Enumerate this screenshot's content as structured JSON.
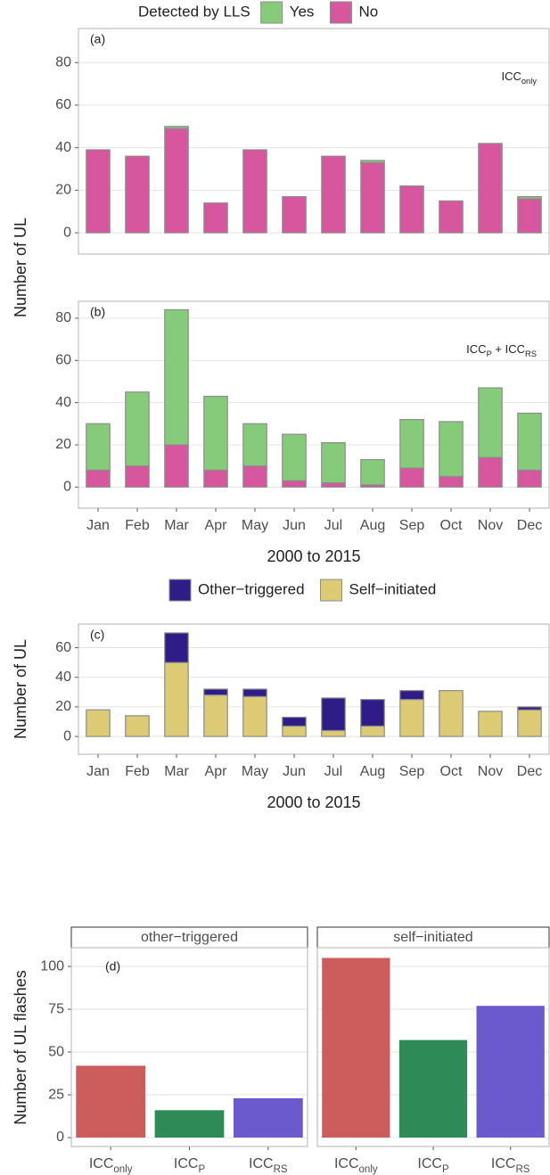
{
  "chart_data": [
    {
      "type": "bar",
      "stacked": true,
      "legend_title": "Detected by LLS",
      "ylabel": "Number of UL",
      "tag": "(a)",
      "note": [
        {
          "text": "ICC"
        },
        {
          "text": "only",
          "sub": true
        }
      ],
      "ylim": [
        -10,
        96
      ],
      "yticks": [
        0,
        20,
        40,
        60,
        80
      ],
      "grid": true,
      "series": [
        {
          "name": "Yes",
          "color": "#86cb79",
          "values": [
            0,
            0,
            1,
            0,
            0,
            0,
            0,
            1,
            0,
            0,
            0,
            1
          ]
        },
        {
          "name": "No",
          "color": "#d6579e",
          "values": [
            39,
            36,
            49,
            14,
            39,
            17,
            36,
            33,
            22,
            15,
            42,
            16
          ]
        }
      ]
    },
    {
      "type": "bar",
      "stacked": true,
      "tag": "(b)",
      "xlabel": "2000 to 2015",
      "note": [
        {
          "text": "ICC"
        },
        {
          "text": "P",
          "sub": true
        },
        {
          "text": " + ICC"
        },
        {
          "text": "RS",
          "sub": true
        }
      ],
      "categories": [
        "Jan",
        "Feb",
        "Mar",
        "Apr",
        "May",
        "Jun",
        "Jul",
        "Aug",
        "Sep",
        "Oct",
        "Nov",
        "Dec"
      ],
      "ylim": [
        -10,
        88
      ],
      "yticks": [
        0,
        20,
        40,
        60,
        80
      ],
      "grid": true,
      "series": [
        {
          "color": "#86cb79",
          "values": [
            22,
            35,
            64,
            35,
            20,
            22,
            19,
            12,
            23,
            26,
            33,
            27
          ]
        },
        {
          "color": "#d6579e",
          "values": [
            8,
            10,
            20,
            8,
            10,
            3,
            2,
            1,
            9,
            5,
            14,
            8
          ]
        }
      ]
    },
    {
      "type": "bar",
      "stacked": true,
      "tag": "(c)",
      "ylabel": "Number of UL",
      "xlabel": "2000 to 2015",
      "categories": [
        "Jan",
        "Feb",
        "Mar",
        "Apr",
        "May",
        "Jun",
        "Jul",
        "Aug",
        "Sep",
        "Oct",
        "Nov",
        "Dec"
      ],
      "ylim": [
        -12,
        76
      ],
      "yticks": [
        0,
        20,
        40,
        60
      ],
      "grid": true,
      "series": [
        {
          "name": "Other−triggered",
          "color": "#2f1c86",
          "values": [
            0,
            0,
            20,
            4,
            5,
            6,
            22,
            18,
            6,
            0,
            0,
            2
          ]
        },
        {
          "name": "Self−initiated",
          "color": "#dccb74",
          "values": [
            18,
            14,
            50,
            28,
            27,
            7,
            4,
            7,
            25,
            31,
            17,
            18
          ]
        }
      ]
    },
    {
      "type": "facet_bar",
      "tag": "(d)",
      "ylabel": "Number of UL flashes",
      "categories": [
        [
          {
            "text": "ICC"
          },
          {
            "text": "only",
            "sub": true
          }
        ],
        [
          {
            "text": "ICC"
          },
          {
            "text": "P",
            "sub": true
          }
        ],
        [
          {
            "text": "ICC"
          },
          {
            "text": "RS",
            "sub": true
          }
        ]
      ],
      "colors": [
        "#cd5c5c",
        "#2e8b57",
        "#6a5acd"
      ],
      "ylim": [
        -5.2,
        111
      ],
      "yticks": [
        0,
        25,
        50,
        75,
        100
      ],
      "grid": true,
      "facets": [
        {
          "title": "other−triggered",
          "values": [
            42,
            16,
            23
          ]
        },
        {
          "title": "self−initiated",
          "values": [
            105,
            57,
            77
          ]
        }
      ]
    }
  ]
}
